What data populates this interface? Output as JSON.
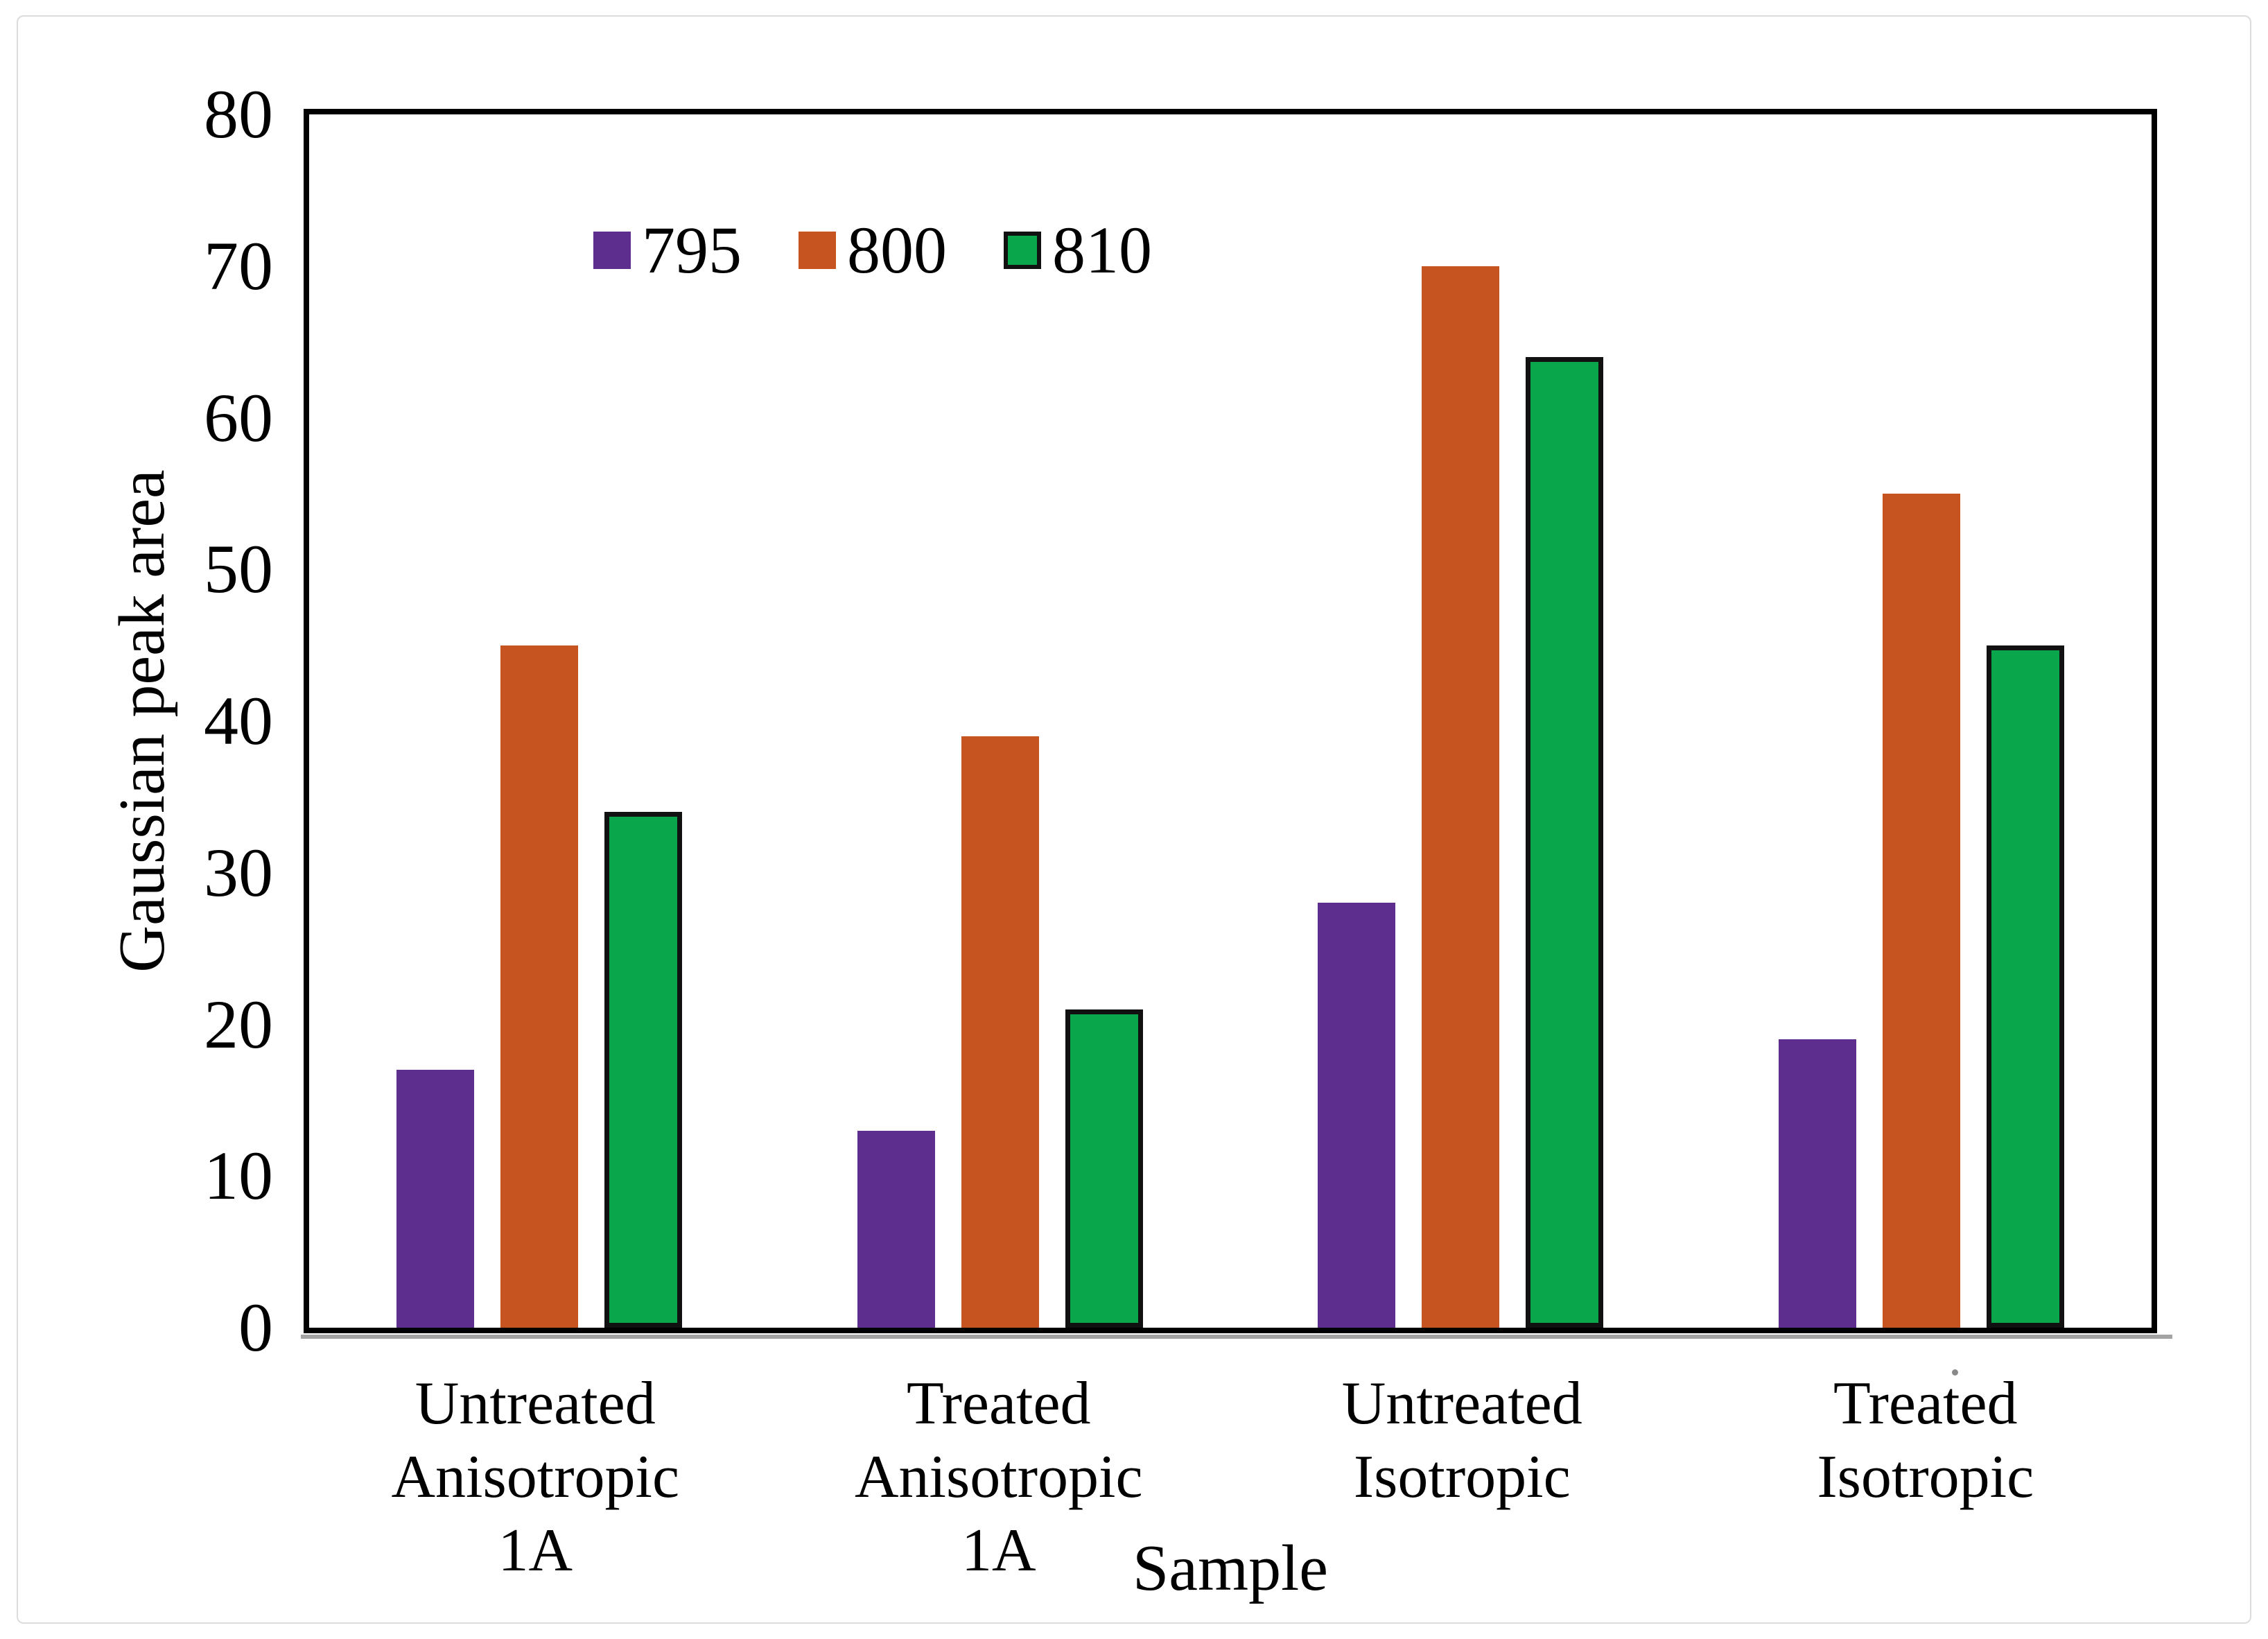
{
  "chart_data": {
    "type": "bar",
    "title": "",
    "xlabel": "Sample",
    "ylabel": "Gaussian peak area",
    "ylim": [
      0,
      80
    ],
    "yticks": [
      0,
      10,
      20,
      30,
      40,
      50,
      60,
      70,
      80
    ],
    "grid": false,
    "legend_position": "inside-top-left",
    "axis_color": "#000000",
    "categories": [
      [
        "Untreated",
        "Anisotropic",
        "1A"
      ],
      [
        "Treated",
        "Anisotropic",
        "1A"
      ],
      [
        "Untreated",
        "Isotropic"
      ],
      [
        "Treated",
        "Isotropic"
      ]
    ],
    "series": [
      {
        "name": "795",
        "color": "#5E2E8E",
        "outlined": false,
        "values": [
          17,
          13,
          28,
          19
        ]
      },
      {
        "name": "800",
        "color": "#C55420",
        "outlined": false,
        "values": [
          45,
          39,
          70,
          55
        ]
      },
      {
        "name": "810",
        "color": "#0AA64B",
        "outlined": true,
        "values": [
          34,
          21,
          64,
          45
        ]
      }
    ],
    "outline_color": "#111111"
  }
}
